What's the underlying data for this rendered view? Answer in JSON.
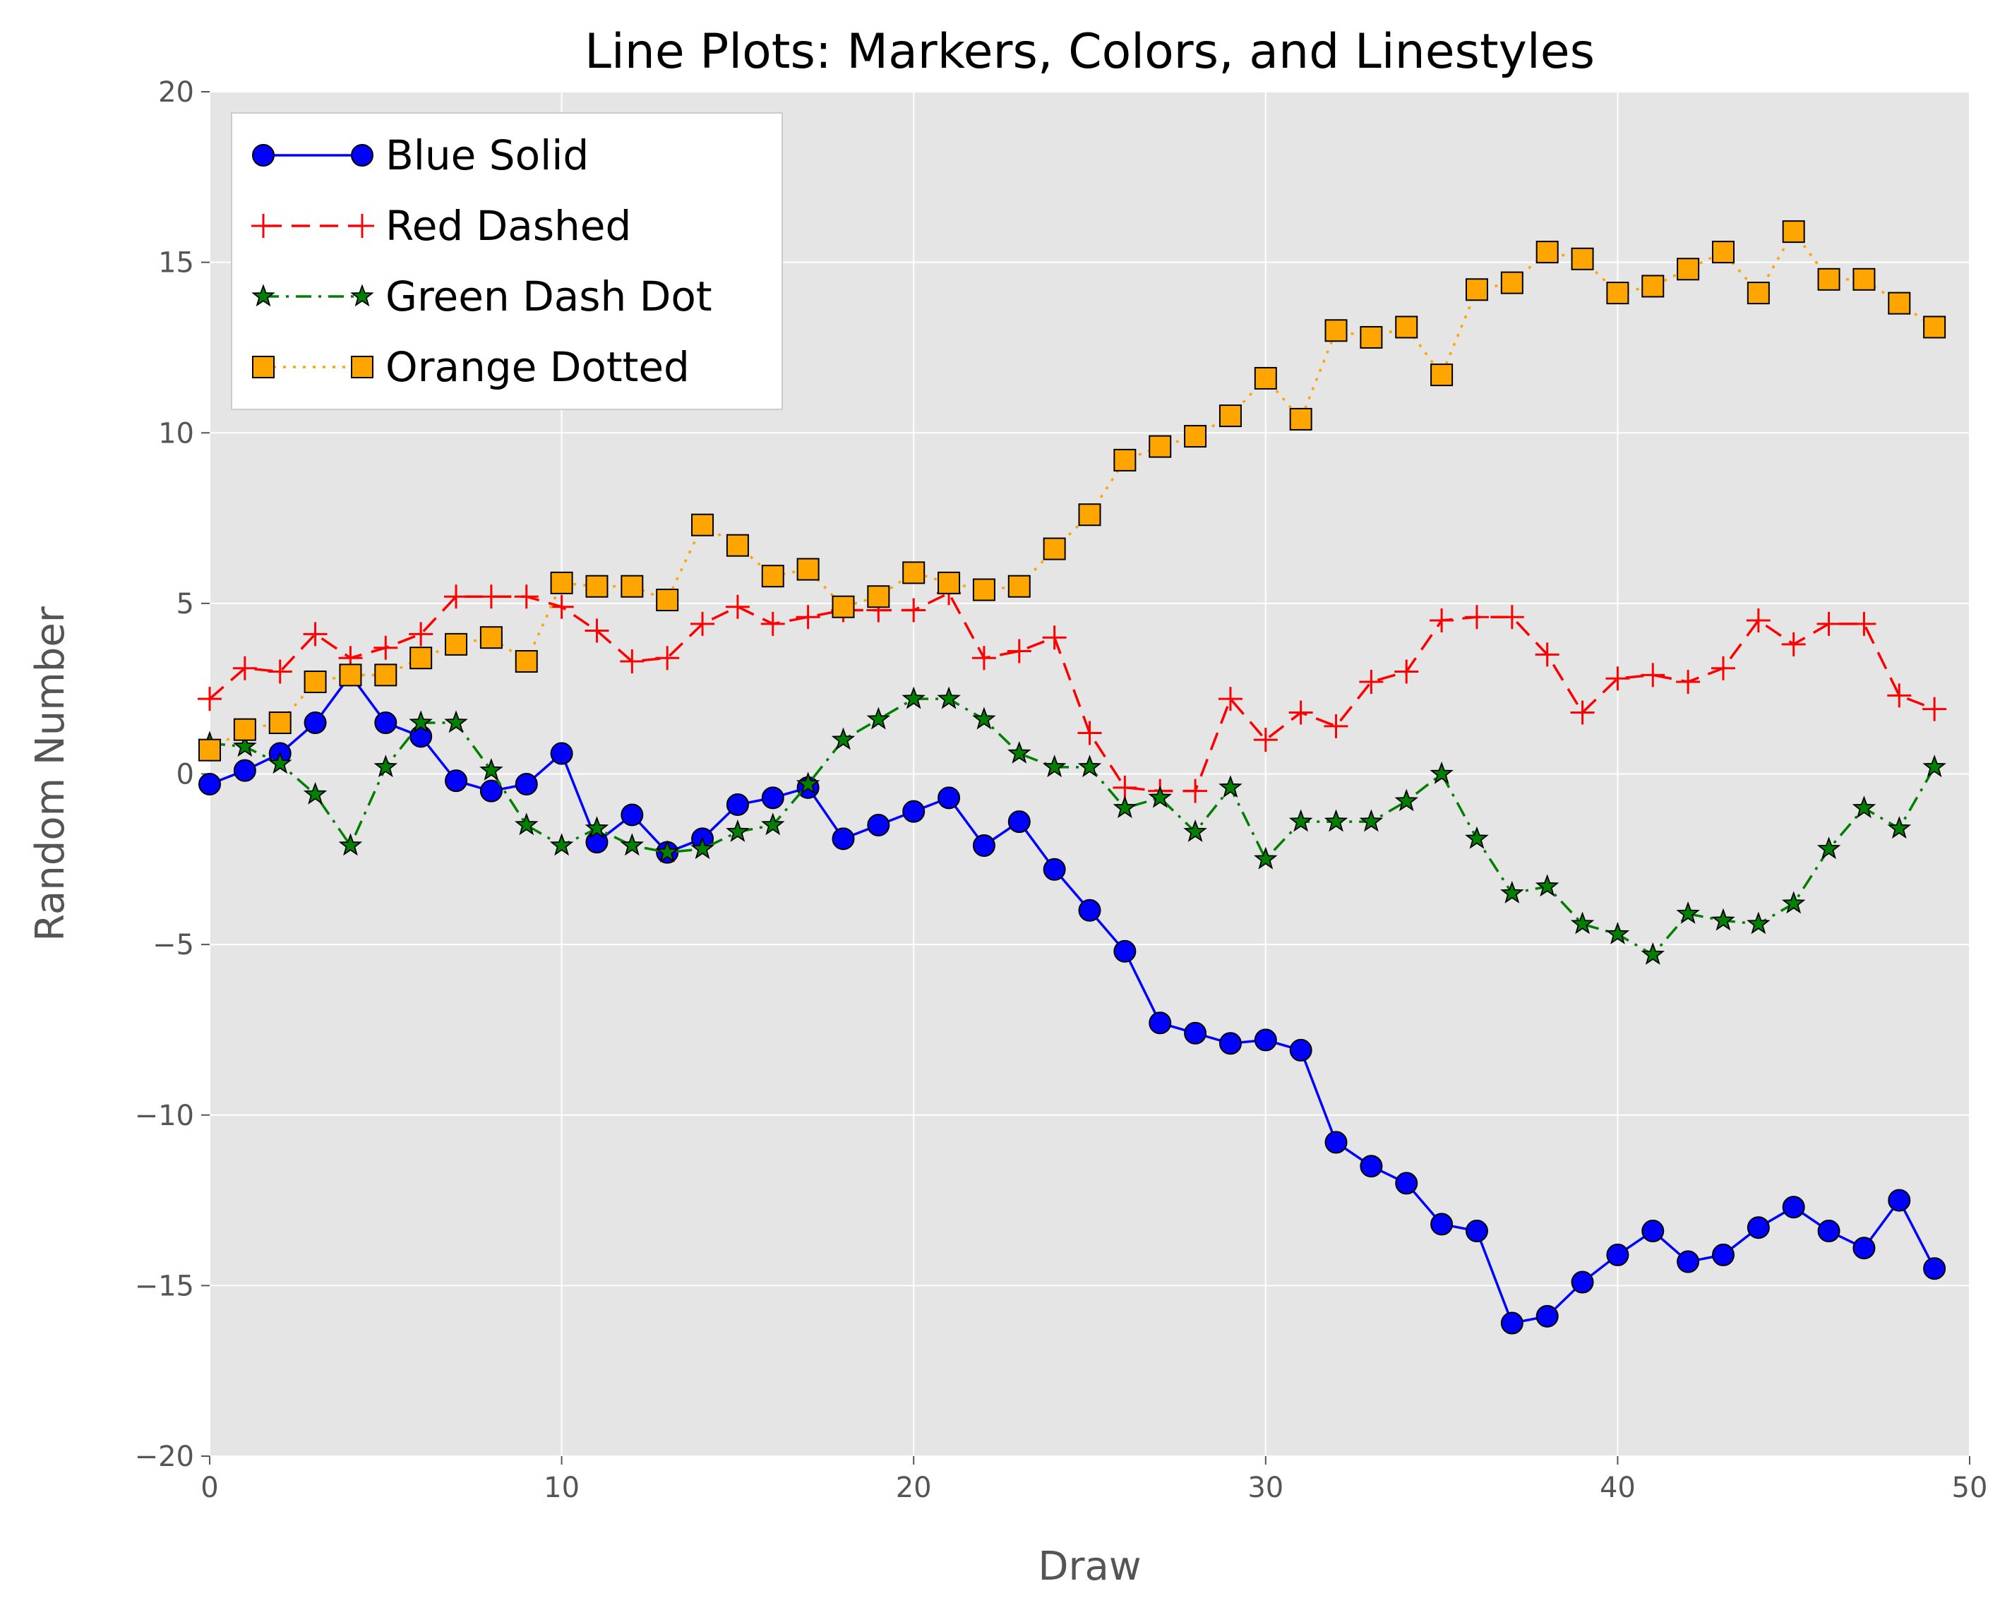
{
  "chart_data": {
    "type": "line",
    "title": "Line Plots: Markers, Colors, and Linestyles",
    "xlabel": "Draw",
    "ylabel": "Random Number",
    "xlim": [
      0,
      50
    ],
    "ylim": [
      -20,
      20
    ],
    "xticks": [
      0,
      10,
      20,
      30,
      40,
      50
    ],
    "yticks": [
      -20,
      -15,
      -10,
      -5,
      0,
      5,
      10,
      15,
      20
    ],
    "xtick_labels": [
      "0",
      "10",
      "20",
      "30",
      "40",
      "50"
    ],
    "ytick_labels": [
      "−20",
      "−15",
      "−10",
      "−5",
      "0",
      "5",
      "10",
      "15",
      "20"
    ],
    "grid": true,
    "legend_position": "top-left",
    "background": "#e5e5e5",
    "x": [
      0,
      1,
      2,
      3,
      4,
      5,
      6,
      7,
      8,
      9,
      10,
      11,
      12,
      13,
      14,
      15,
      16,
      17,
      18,
      19,
      20,
      21,
      22,
      23,
      24,
      25,
      26,
      27,
      28,
      29,
      30,
      31,
      32,
      33,
      34,
      35,
      36,
      37,
      38,
      39,
      40,
      41,
      42,
      43,
      44,
      45,
      46,
      47,
      48,
      49
    ],
    "series": [
      {
        "name": "Blue Solid",
        "color": "#0000ff",
        "marker": "circle",
        "linestyle": "solid",
        "values": [
          -0.3,
          0.1,
          0.6,
          1.5,
          2.9,
          1.5,
          1.1,
          -0.2,
          -0.5,
          -0.3,
          0.6,
          -2.0,
          -1.2,
          -2.3,
          -1.9,
          -0.9,
          -0.7,
          -0.4,
          -1.9,
          -1.5,
          -1.1,
          -0.7,
          -2.1,
          -1.4,
          -2.8,
          -4.0,
          -5.2,
          -7.3,
          -7.6,
          -7.9,
          -7.8,
          -8.1,
          -10.8,
          -11.5,
          -12.0,
          -13.2,
          -13.4,
          -16.1,
          -15.9,
          -14.9,
          -14.1,
          -13.4,
          -14.3,
          -14.1,
          -13.3,
          -12.7,
          -13.4,
          -13.9,
          -12.5,
          -14.5
        ]
      },
      {
        "name": "Red Dashed",
        "color": "#ff0000",
        "marker": "plus",
        "linestyle": "dashed",
        "values": [
          2.2,
          3.1,
          3.0,
          4.1,
          3.4,
          3.7,
          4.1,
          5.2,
          5.2,
          5.2,
          4.9,
          4.2,
          3.3,
          3.4,
          4.4,
          4.9,
          4.4,
          4.6,
          4.8,
          4.8,
          4.8,
          5.3,
          3.4,
          3.6,
          4.0,
          1.2,
          -0.4,
          -0.5,
          -0.5,
          2.2,
          1.0,
          1.8,
          1.4,
          2.7,
          3.0,
          4.5,
          4.6,
          4.6,
          3.5,
          1.8,
          2.8,
          2.9,
          2.7,
          3.1,
          4.5,
          3.8,
          4.4,
          4.4,
          2.3,
          1.9
        ]
      },
      {
        "name": "Green Dash Dot",
        "color": "#008000",
        "marker": "star",
        "linestyle": "dashdot",
        "values": [
          0.9,
          0.8,
          0.3,
          -0.6,
          -2.1,
          0.2,
          1.5,
          1.5,
          0.1,
          -1.5,
          -2.1,
          -1.6,
          -2.1,
          -2.3,
          -2.2,
          -1.7,
          -1.5,
          -0.3,
          1.0,
          1.6,
          2.2,
          2.2,
          1.6,
          0.6,
          0.2,
          0.2,
          -1.0,
          -0.7,
          -1.7,
          -0.4,
          -2.5,
          -1.4,
          -1.4,
          -1.4,
          -0.8,
          0.0,
          -1.9,
          -3.5,
          -3.3,
          -4.4,
          -4.7,
          -5.3,
          -4.1,
          -4.3,
          -4.4,
          -3.8,
          -2.2,
          -1.0,
          -1.6,
          0.2
        ]
      },
      {
        "name": "Orange Dotted",
        "color": "#ffa500",
        "marker": "square",
        "linestyle": "dotted",
        "values": [
          0.7,
          1.3,
          1.5,
          2.7,
          2.9,
          2.9,
          3.4,
          3.8,
          4.0,
          3.3,
          5.6,
          5.5,
          5.5,
          5.1,
          7.3,
          6.7,
          5.8,
          6.0,
          4.9,
          5.2,
          5.9,
          5.6,
          5.4,
          5.5,
          6.6,
          7.6,
          9.2,
          9.6,
          9.9,
          10.5,
          11.6,
          10.4,
          13.0,
          12.8,
          13.1,
          11.7,
          14.2,
          14.4,
          15.3,
          15.1,
          14.1,
          14.3,
          14.8,
          15.3,
          14.1,
          15.9,
          14.5,
          14.5,
          13.8,
          13.1
        ]
      }
    ]
  }
}
